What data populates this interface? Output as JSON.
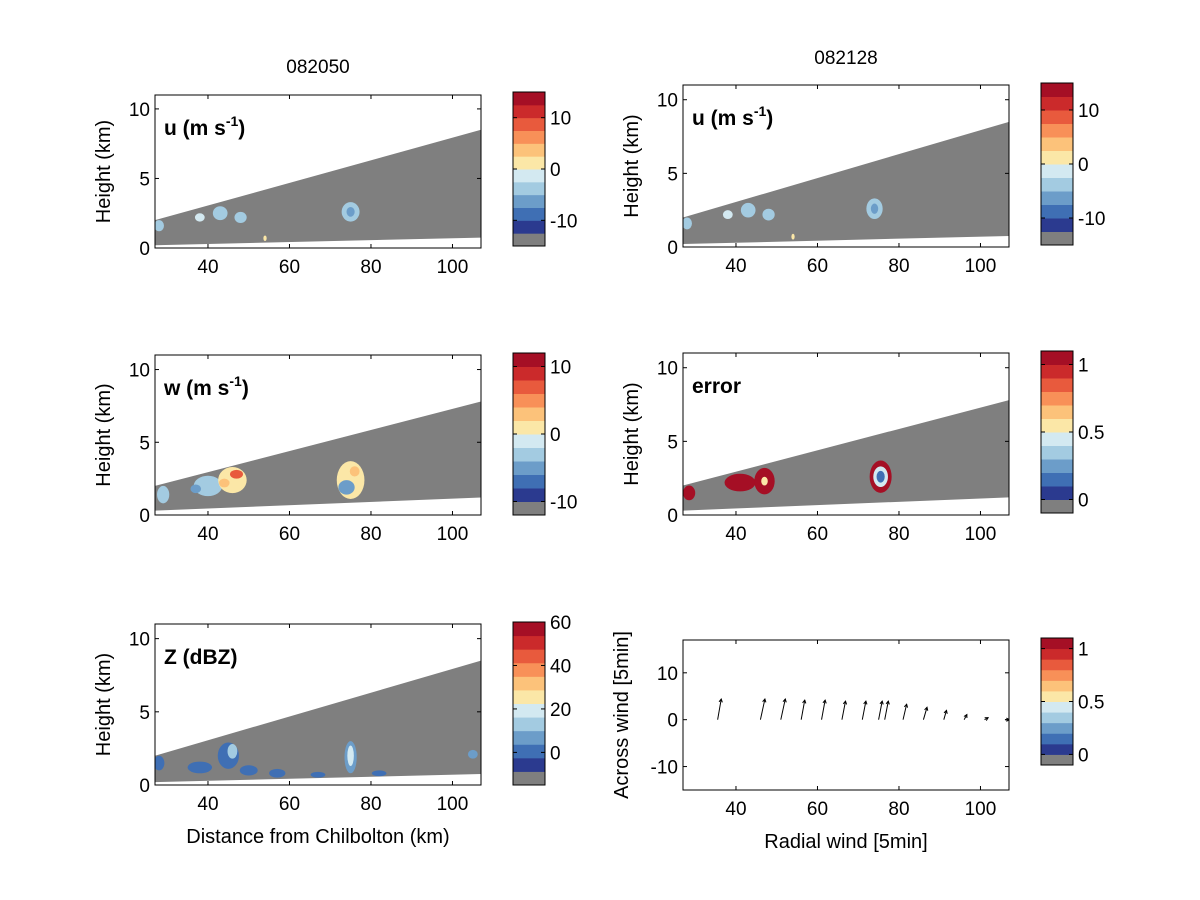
{
  "palette": [
    "#7f7f7f",
    "#2b3a8f",
    "#3f6fb4",
    "#6c9dc9",
    "#a3cbe1",
    "#d3e9f1",
    "#fbe7a7",
    "#fcc27a",
    "#f89058",
    "#e85a3d",
    "#cb2a2b",
    "#a50f25"
  ],
  "grid": {
    "columns": [
      {
        "title": "082050"
      },
      {
        "title": "082128"
      }
    ]
  },
  "chart_data": [
    {
      "id": "p11",
      "type": "heatmap",
      "title": "",
      "label": "u (m s",
      "label_sup": "-1",
      "label_tail": ")",
      "xlabel": "",
      "ylabel": "Height (km)",
      "xlim": [
        27,
        107
      ],
      "ylim": [
        0,
        11
      ],
      "xticks": [
        40,
        60,
        80,
        100
      ],
      "yticks": [
        0,
        5,
        10
      ],
      "wedge": {
        "base": [
          [
            27,
            0.2
          ],
          [
            107,
            0.75
          ]
        ],
        "top": [
          [
            27,
            2.0
          ],
          [
            107,
            8.5
          ]
        ]
      },
      "colorbar": {
        "ticks": [
          10,
          0,
          -10
        ],
        "range": [
          -15,
          15
        ]
      },
      "echoes": [
        {
          "x": 28,
          "y": 1.6,
          "rx": 1.2,
          "ry": 0.4,
          "c": 4
        },
        {
          "x": 38,
          "y": 2.2,
          "rx": 1.2,
          "ry": 0.3,
          "c": 5
        },
        {
          "x": 43,
          "y": 2.5,
          "rx": 1.8,
          "ry": 0.5,
          "c": 4
        },
        {
          "x": 48,
          "y": 2.2,
          "rx": 1.5,
          "ry": 0.4,
          "c": 4
        },
        {
          "x": 75,
          "y": 2.6,
          "rx": 2.2,
          "ry": 0.7,
          "c": 4
        },
        {
          "x": 75,
          "y": 2.6,
          "rx": 1.0,
          "ry": 0.35,
          "c": 3
        },
        {
          "x": 54,
          "y": 0.7,
          "rx": 0.4,
          "ry": 0.2,
          "c": 6
        }
      ]
    },
    {
      "id": "p12",
      "type": "heatmap",
      "title": "",
      "label": "u (m s",
      "label_sup": "-1",
      "label_tail": ")",
      "xlabel": "",
      "ylabel": "Height (km)",
      "xlim": [
        27,
        107
      ],
      "ylim": [
        0,
        11
      ],
      "xticks": [
        40,
        60,
        80,
        100
      ],
      "yticks": [
        0,
        5,
        10
      ],
      "wedge": {
        "base": [
          [
            27,
            0.2
          ],
          [
            107,
            0.75
          ]
        ],
        "top": [
          [
            27,
            2.0
          ],
          [
            107,
            8.5
          ]
        ]
      },
      "colorbar": {
        "ticks": [
          10,
          0,
          -10
        ],
        "range": [
          -15,
          15
        ]
      },
      "echoes": [
        {
          "x": 28,
          "y": 1.6,
          "rx": 1.2,
          "ry": 0.4,
          "c": 4
        },
        {
          "x": 38,
          "y": 2.2,
          "rx": 1.2,
          "ry": 0.3,
          "c": 5
        },
        {
          "x": 43,
          "y": 2.5,
          "rx": 1.8,
          "ry": 0.5,
          "c": 4
        },
        {
          "x": 48,
          "y": 2.2,
          "rx": 1.5,
          "ry": 0.4,
          "c": 4
        },
        {
          "x": 74,
          "y": 2.6,
          "rx": 2.0,
          "ry": 0.7,
          "c": 4
        },
        {
          "x": 74,
          "y": 2.6,
          "rx": 0.9,
          "ry": 0.35,
          "c": 3
        },
        {
          "x": 54,
          "y": 0.7,
          "rx": 0.4,
          "ry": 0.2,
          "c": 6
        }
      ]
    },
    {
      "id": "p21",
      "type": "heatmap",
      "title": "",
      "label": "w (m s",
      "label_sup": "-1",
      "label_tail": ")",
      "xlabel": "",
      "ylabel": "Height (km)",
      "xlim": [
        27,
        107
      ],
      "ylim": [
        0,
        11
      ],
      "xticks": [
        40,
        60,
        80,
        100
      ],
      "yticks": [
        0,
        5,
        10
      ],
      "wedge": {
        "base": [
          [
            27,
            0.3
          ],
          [
            107,
            1.2
          ]
        ],
        "top": [
          [
            27,
            2.0
          ],
          [
            107,
            7.8
          ]
        ]
      },
      "colorbar": {
        "ticks": [
          10,
          0,
          -10
        ],
        "range": [
          -12,
          12
        ]
      },
      "echoes": [
        {
          "x": 29,
          "y": 1.4,
          "rx": 1.5,
          "ry": 0.6,
          "c": 4
        },
        {
          "x": 40,
          "y": 2.0,
          "rx": 3.5,
          "ry": 0.7,
          "c": 4
        },
        {
          "x": 46,
          "y": 2.4,
          "rx": 3.5,
          "ry": 0.9,
          "c": 6
        },
        {
          "x": 47,
          "y": 2.8,
          "rx": 1.6,
          "ry": 0.3,
          "c": 9
        },
        {
          "x": 44,
          "y": 2.2,
          "rx": 1.3,
          "ry": 0.3,
          "c": 7
        },
        {
          "x": 37,
          "y": 1.8,
          "rx": 1.3,
          "ry": 0.3,
          "c": 3
        },
        {
          "x": 75,
          "y": 2.4,
          "rx": 3.4,
          "ry": 1.3,
          "c": 6
        },
        {
          "x": 74,
          "y": 1.9,
          "rx": 2.0,
          "ry": 0.5,
          "c": 3
        },
        {
          "x": 76,
          "y": 3.0,
          "rx": 1.2,
          "ry": 0.35,
          "c": 7
        }
      ]
    },
    {
      "id": "p22",
      "type": "heatmap",
      "title": "",
      "label": "error",
      "label_sup": "",
      "label_tail": "",
      "xlabel": "",
      "ylabel": "Height (km)",
      "xlim": [
        27,
        107
      ],
      "ylim": [
        0,
        11
      ],
      "xticks": [
        40,
        60,
        80,
        100
      ],
      "yticks": [
        0,
        5,
        10
      ],
      "wedge": {
        "base": [
          [
            27,
            0.3
          ],
          [
            107,
            1.2
          ]
        ],
        "top": [
          [
            27,
            2.0
          ],
          [
            107,
            7.8
          ]
        ]
      },
      "colorbar": {
        "ticks": [
          1,
          0.5,
          0
        ],
        "range": [
          -0.1,
          1.1
        ]
      },
      "echoes": [
        {
          "x": 28.5,
          "y": 1.5,
          "rx": 1.5,
          "ry": 0.5,
          "c": 11
        },
        {
          "x": 41,
          "y": 2.2,
          "rx": 3.8,
          "ry": 0.6,
          "c": 11
        },
        {
          "x": 47,
          "y": 2.3,
          "rx": 2.5,
          "ry": 0.9,
          "c": 11
        },
        {
          "x": 47,
          "y": 2.3,
          "rx": 0.8,
          "ry": 0.3,
          "c": 6
        },
        {
          "x": 75.5,
          "y": 2.6,
          "rx": 2.7,
          "ry": 1.1,
          "c": 11
        },
        {
          "x": 75.5,
          "y": 2.6,
          "rx": 1.8,
          "ry": 0.7,
          "c": 5
        },
        {
          "x": 75.5,
          "y": 2.6,
          "rx": 1.0,
          "ry": 0.4,
          "c": 2
        }
      ]
    },
    {
      "id": "p31",
      "type": "heatmap",
      "title": "",
      "label": "Z (dBZ)",
      "label_sup": "",
      "label_tail": "",
      "xlabel": "Distance from Chilbolton (km)",
      "ylabel": "Height (km)",
      "xlim": [
        27,
        107
      ],
      "ylim": [
        0,
        11
      ],
      "xticks": [
        40,
        60,
        80,
        100
      ],
      "yticks": [
        0,
        5,
        10
      ],
      "wedge": {
        "base": [
          [
            27,
            0.2
          ],
          [
            107,
            0.75
          ]
        ],
        "top": [
          [
            27,
            2.0
          ],
          [
            107,
            8.5
          ]
        ]
      },
      "colorbar": {
        "ticks": [
          60,
          40,
          20,
          0
        ],
        "range": [
          -15,
          60
        ]
      },
      "echoes": [
        {
          "x": 28,
          "y": 1.5,
          "rx": 1.3,
          "ry": 0.5,
          "c": 2
        },
        {
          "x": 38,
          "y": 1.2,
          "rx": 3.0,
          "ry": 0.4,
          "c": 2
        },
        {
          "x": 45,
          "y": 2.0,
          "rx": 2.6,
          "ry": 0.9,
          "c": 2
        },
        {
          "x": 46,
          "y": 2.3,
          "rx": 1.2,
          "ry": 0.5,
          "c": 4
        },
        {
          "x": 50,
          "y": 1.0,
          "rx": 2.2,
          "ry": 0.35,
          "c": 2
        },
        {
          "x": 57,
          "y": 0.8,
          "rx": 2.0,
          "ry": 0.3,
          "c": 2
        },
        {
          "x": 75,
          "y": 1.9,
          "rx": 1.5,
          "ry": 1.1,
          "c": 3
        },
        {
          "x": 75,
          "y": 2.0,
          "rx": 0.8,
          "ry": 0.7,
          "c": 5
        },
        {
          "x": 67,
          "y": 0.7,
          "rx": 1.8,
          "ry": 0.2,
          "c": 2
        },
        {
          "x": 82,
          "y": 0.8,
          "rx": 1.8,
          "ry": 0.2,
          "c": 2
        },
        {
          "x": 105,
          "y": 2.1,
          "rx": 1.2,
          "ry": 0.3,
          "c": 3
        }
      ]
    },
    {
      "id": "p32",
      "type": "scatter",
      "title": "",
      "label": "",
      "label_sup": "",
      "label_tail": "",
      "xlabel": "Radial wind [5min]",
      "ylabel": "Across wind [5min]",
      "xlim": [
        27,
        107
      ],
      "ylim": [
        -15,
        17
      ],
      "xticks": [
        40,
        60,
        80,
        100
      ],
      "yticks": [
        -10,
        0,
        10
      ],
      "colorbar": {
        "ticks": [
          1,
          0.5,
          0
        ],
        "range": [
          -0.1,
          1.1
        ]
      },
      "vectors": [
        {
          "x": 35.5,
          "u": 0.4,
          "v": 2.0
        },
        {
          "x": 46,
          "u": 0.5,
          "v": 2.0
        },
        {
          "x": 51,
          "u": 0.5,
          "v": 2.0
        },
        {
          "x": 56,
          "u": 0.4,
          "v": 1.9
        },
        {
          "x": 61,
          "u": 0.4,
          "v": 1.9
        },
        {
          "x": 66,
          "u": 0.4,
          "v": 1.8
        },
        {
          "x": 71,
          "u": 0.4,
          "v": 1.8
        },
        {
          "x": 75,
          "u": 0.4,
          "v": 1.8
        },
        {
          "x": 76.5,
          "u": 0.4,
          "v": 1.8
        },
        {
          "x": 81,
          "u": 0.4,
          "v": 1.5
        },
        {
          "x": 86,
          "u": 0.4,
          "v": 1.2
        },
        {
          "x": 91,
          "u": 0.3,
          "v": 0.9
        },
        {
          "x": 96,
          "u": 0.3,
          "v": 0.5
        },
        {
          "x": 101,
          "u": 0.4,
          "v": 0.2
        },
        {
          "x": 106,
          "u": 0.5,
          "v": 0.0
        }
      ]
    }
  ]
}
